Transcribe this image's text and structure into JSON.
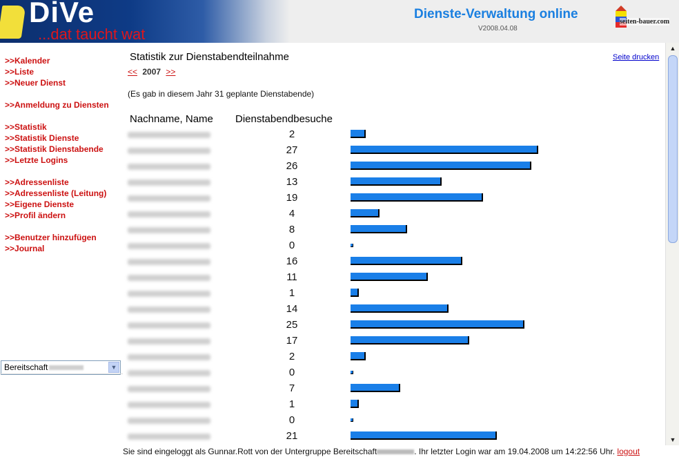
{
  "header": {
    "logo_text": "DiVe",
    "logo_tagline": "...dat taucht wat",
    "app_title": "Dienste-Verwaltung online",
    "version": "V2008.04.08",
    "brand_text": "seiten-bauer.com",
    "banner_color": "#0e3b86",
    "title_color": "#1a7fe0"
  },
  "sidebar": {
    "groups": [
      [
        ">>Kalender",
        ">>Liste",
        ">>Neuer Dienst"
      ],
      [
        ">>Anmeldung zu Diensten"
      ],
      [
        ">>Statistik",
        ">>Statistik Dienste",
        ">>Statistik Dienstabende",
        ">>Letzte Logins"
      ],
      [
        ">>Adressenliste",
        ">>Adressenliste (Leitung)",
        ">>Eigene Dienste",
        ">>Profil ändern"
      ],
      [
        ">>Benutzer hinzufügen",
        ">>Journal"
      ]
    ],
    "group_select": "Bereitschaft",
    "link_color": "#cc1111"
  },
  "main": {
    "title": "Statistik zur Dienstabendteilnahme",
    "print_link": "Seite drucken",
    "prev": "<<",
    "year": "2007",
    "next": ">>",
    "info": "(Es gab in diesem Jahr 31 geplante Dienstabende)",
    "col_name": "Nachname, Name",
    "col_count": "Dienstabendbesuche",
    "total_planned": 31,
    "bar_color": "#1a7fe8",
    "rows": [
      {
        "count": "2"
      },
      {
        "count": "27"
      },
      {
        "count": "26"
      },
      {
        "count": "13"
      },
      {
        "count": "19"
      },
      {
        "count": "4"
      },
      {
        "count": "8"
      },
      {
        "count": "0"
      },
      {
        "count": "16"
      },
      {
        "count": "11"
      },
      {
        "count": "1"
      },
      {
        "count": "14"
      },
      {
        "count": "25"
      },
      {
        "count": "17"
      },
      {
        "count": "2"
      },
      {
        "count": "0"
      },
      {
        "count": "7"
      },
      {
        "count": "1"
      },
      {
        "count": "0"
      },
      {
        "count": "21"
      }
    ]
  },
  "footer": {
    "text_before": "Sie sind eingeloggt als Gunnar.Rott von der Untergruppe Bereitschaft",
    "text_after": ". Ihr letzter Login war am 19.04.2008 um 14:22:56 Uhr.",
    "logout": "logout"
  }
}
